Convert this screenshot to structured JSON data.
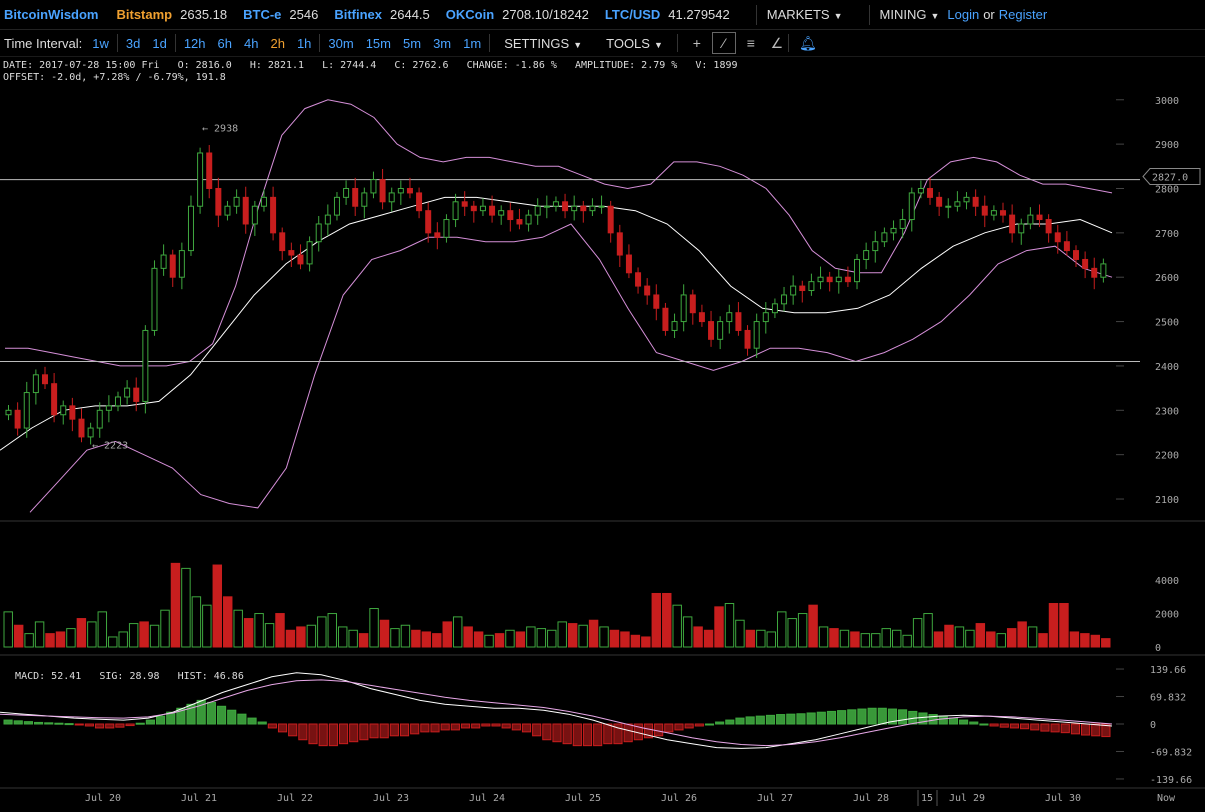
{
  "header": {
    "brand": "BitcoinWisdom",
    "tickers": [
      {
        "exchange": "Bitstamp",
        "price": "2635.18",
        "color": "orange"
      },
      {
        "exchange": "BTC-e",
        "price": "2546",
        "color": "blue"
      },
      {
        "exchange": "Bitfinex",
        "price": "2644.5",
        "color": "blue"
      },
      {
        "exchange": "OKCoin",
        "price": "2708.10/18242",
        "color": "blue"
      },
      {
        "exchange": "LTC/USD",
        "price": "41.279542",
        "color": "blue"
      }
    ],
    "markets_label": "MARKETS",
    "mining_label": "MINING",
    "login_label": "Login",
    "or_label": "or",
    "register_label": "Register"
  },
  "toolbar": {
    "time_interval_label": "Time Interval:",
    "intervals": [
      "1w",
      "3d",
      "1d",
      "12h",
      "6h",
      "4h",
      "2h",
      "1h",
      "30m",
      "15m",
      "5m",
      "3m",
      "1m"
    ],
    "active_interval": "2h",
    "settings_label": "SETTINGS",
    "tools_label": "TOOLS"
  },
  "info": {
    "line1": "DATE: 2017-07-28 15:00 Fri   O: 2816.0   H: 2821.1   L: 2744.4   C: 2762.6   CHANGE: -1.86 %   AMPLITUDE: 2.79 %   V: 1899",
    "line2": "OFFSET: -2.0d, +7.28% / -6.79%, 191.8"
  },
  "macd_legend": {
    "macd": "MACD: 52.41",
    "sig": "SIG: 28.98",
    "hist": "HIST: 46.86"
  },
  "colors": {
    "up": "#3fa83f",
    "up_fill": "#000000",
    "down": "#c81e1e",
    "band": "#d58fd8",
    "ma": "#ffffff",
    "hline": "#bbbbbb",
    "link": "#4aa3ff",
    "accent": "#f0a030"
  },
  "chart_data": {
    "type": "candlestick",
    "price_axis": {
      "ticks": [
        3000,
        2900,
        2800,
        2700,
        2600,
        2500,
        2400,
        2300,
        2200,
        2100
      ],
      "ylim": [
        2064,
        3022
      ]
    },
    "volume_axis": {
      "ticks": [
        4000,
        2000,
        0
      ],
      "ylim": [
        0,
        5500
      ]
    },
    "macd_axis": {
      "ticks": [
        139.66,
        69.832,
        0,
        -69.832,
        -139.66
      ],
      "tick_labels": [
        "139.66",
        "69.832",
        "0",
        "-69.832",
        "-139.66"
      ]
    },
    "x_labels": [
      "Jul 20",
      "Jul 21",
      "Jul 22",
      "Jul 23",
      "Jul 24",
      "Jul 25",
      "Jul 26",
      "Jul 27",
      "Jul 28",
      "15",
      "Jul 29",
      "Jul 30",
      "Now"
    ],
    "current_price_tag": "2827.0",
    "current_price": 2827.0,
    "horizontal_lines": [
      2820,
      2410
    ],
    "annotations": [
      {
        "text": "← 2938",
        "price": 2938
      },
      {
        "text": "← 2223",
        "price": 2223
      }
    ],
    "candles_close": [
      2300,
      2260,
      2340,
      2380,
      2360,
      2290,
      2310,
      2280,
      2240,
      2260,
      2300,
      2310,
      2330,
      2350,
      2320,
      2480,
      2620,
      2650,
      2600,
      2660,
      2760,
      2880,
      2800,
      2740,
      2760,
      2780,
      2720,
      2760,
      2780,
      2700,
      2660,
      2650,
      2630,
      2680,
      2720,
      2740,
      2780,
      2800,
      2760,
      2790,
      2820,
      2770,
      2790,
      2800,
      2790,
      2750,
      2700,
      2690,
      2730,
      2770,
      2760,
      2750,
      2760,
      2740,
      2750,
      2730,
      2720,
      2740,
      2760,
      2760,
      2770,
      2750,
      2760,
      2750,
      2760,
      2760,
      2700,
      2650,
      2610,
      2580,
      2560,
      2530,
      2480,
      2500,
      2560,
      2520,
      2500,
      2460,
      2500,
      2520,
      2480,
      2440,
      2500,
      2520,
      2540,
      2560,
      2580,
      2570,
      2590,
      2600,
      2590,
      2600,
      2590,
      2640,
      2660,
      2680,
      2700,
      2710,
      2730,
      2790,
      2800,
      2780,
      2760,
      2760,
      2770,
      2780,
      2760,
      2740,
      2750,
      2740,
      2700,
      2720,
      2740,
      2730,
      2700,
      2680,
      2660,
      2640,
      2620,
      2600,
      2630
    ],
    "band_upper": [
      2440,
      2440,
      2430,
      2420,
      2410,
      2400,
      2400,
      2400,
      2410,
      2450,
      2580,
      2760,
      2920,
      2980,
      3000,
      2990,
      2960,
      2900,
      2870,
      2860,
      2870,
      2870,
      2860,
      2850,
      2850,
      2830,
      2810,
      2800,
      2810,
      2860,
      2860,
      2850,
      2830,
      2800,
      2740,
      2660,
      2620,
      2610,
      2610,
      2700,
      2820,
      2860,
      2870,
      2860,
      2830,
      2810,
      2810,
      2800,
      2790
    ],
    "band_lower": [
      2070,
      2140,
      2210,
      2230,
      2200,
      2170,
      2110,
      2090,
      2080,
      2170,
      2380,
      2560,
      2640,
      2660,
      2690,
      2690,
      2680,
      2680,
      2690,
      2720,
      2640,
      2530,
      2430,
      2410,
      2390,
      2410,
      2440,
      2440,
      2430,
      2410,
      2430,
      2460,
      2500,
      2560,
      2630,
      2660,
      2670,
      2620,
      2600
    ],
    "ma": [
      2210,
      2260,
      2300,
      2310,
      2310,
      2320,
      2380,
      2470,
      2560,
      2630,
      2680,
      2720,
      2740,
      2760,
      2780,
      2780,
      2770,
      2760,
      2760,
      2760,
      2750,
      2720,
      2660,
      2580,
      2530,
      2520,
      2520,
      2530,
      2560,
      2620,
      2670,
      2700,
      2720,
      2720,
      2730,
      2700
    ],
    "volume": [
      2100,
      1300,
      800,
      1500,
      800,
      900,
      1100,
      1700,
      1500,
      2100,
      600,
      900,
      1400,
      1500,
      1300,
      2200,
      5000,
      4700,
      3000,
      2500,
      4900,
      3000,
      2200,
      1700,
      2000,
      1400,
      2000,
      1000,
      1200,
      1300,
      1800,
      2000,
      1200,
      1000,
      800,
      2300,
      1600,
      1100,
      1300,
      1000,
      900,
      800,
      1500,
      1800,
      1200,
      900,
      700,
      800,
      1000,
      900,
      1200,
      1100,
      1000,
      1500,
      1400,
      1300,
      1600,
      1200,
      1000,
      900,
      700,
      600,
      3200,
      3200,
      2500,
      1800,
      1200,
      1000,
      2400,
      2600,
      1600,
      1000,
      1000,
      900,
      2100,
      1700,
      2000,
      2500,
      1200,
      1100,
      1000,
      900,
      800,
      800,
      1100,
      1000,
      700,
      1700,
      2000,
      900,
      1300,
      1200,
      1000,
      1400,
      900,
      800,
      1100,
      1500,
      1200,
      800,
      2600,
      2600,
      900,
      800,
      700,
      500
    ],
    "macd_hist": [
      10,
      8,
      6,
      4,
      3,
      2,
      1,
      -2,
      -5,
      -10,
      -10,
      -8,
      -4,
      2,
      10,
      20,
      30,
      40,
      50,
      60,
      55,
      45,
      35,
      25,
      15,
      5,
      -10,
      -20,
      -30,
      -40,
      -50,
      -55,
      -55,
      -50,
      -45,
      -40,
      -35,
      -35,
      -30,
      -30,
      -25,
      -20,
      -20,
      -15,
      -15,
      -10,
      -10,
      -5,
      -5,
      -10,
      -15,
      -20,
      -30,
      -40,
      -45,
      -50,
      -55,
      -55,
      -55,
      -50,
      -50,
      -45,
      -40,
      -35,
      -30,
      -20,
      -15,
      -10,
      -5,
      0,
      5,
      10,
      15,
      18,
      20,
      22,
      24,
      25,
      26,
      28,
      30,
      32,
      34,
      36,
      38,
      40,
      40,
      38,
      36,
      32,
      28,
      24,
      20,
      15,
      10,
      5,
      0,
      -5,
      -8,
      -10,
      -12,
      -15,
      -18,
      -20,
      -22,
      -25,
      -28,
      -30,
      -32
    ],
    "macd_line": [
      30,
      25,
      20,
      15,
      12,
      10,
      15,
      30,
      55,
      80,
      100,
      120,
      130,
      125,
      110,
      90,
      75,
      60,
      50,
      45,
      40,
      40,
      35,
      25,
      10,
      -10,
      -25,
      -40,
      -50,
      -60,
      -62,
      -60,
      -50,
      -40,
      -25,
      -10,
      5,
      15,
      20,
      22,
      20,
      15,
      10,
      5,
      0,
      -5
    ],
    "signal_line": [
      25,
      22,
      20,
      18,
      16,
      15,
      18,
      28,
      45,
      65,
      85,
      100,
      110,
      112,
      108,
      98,
      88,
      78,
      68,
      60,
      54,
      48,
      42,
      32,
      20,
      5,
      -10,
      -22,
      -35,
      -45,
      -52,
      -55,
      -52,
      -45,
      -35,
      -22,
      -10,
      2,
      12,
      18,
      20,
      18,
      14,
      10,
      5,
      0
    ]
  }
}
